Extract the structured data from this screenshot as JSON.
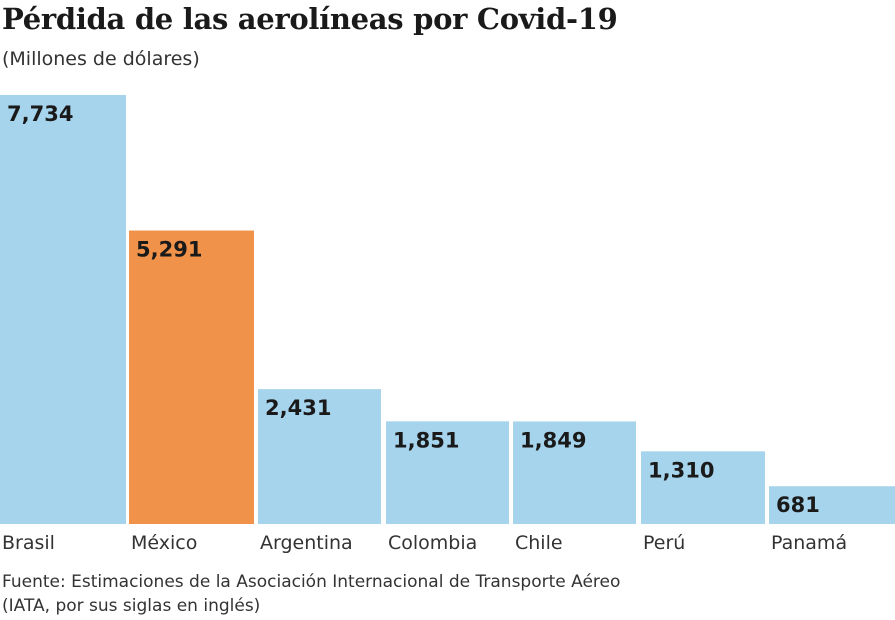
{
  "chart_data": {
    "type": "bar",
    "title": "Pérdida de las aerolíneas por Covid-19",
    "subtitle": "(Millones de dólares)",
    "categories": [
      "Brasil",
      "México",
      "Argentina",
      "Colombia",
      "Chile",
      "Perú",
      "Panamá"
    ],
    "values": [
      7734,
      5291,
      2431,
      1851,
      1849,
      1310,
      681
    ],
    "data_labels": [
      "7,734",
      "5,291",
      "2,431",
      "1,851",
      "1,849",
      "1,310",
      "681"
    ],
    "highlight": "México",
    "colors": {
      "default": "#a6d4ec",
      "highlight": "#f0924a"
    },
    "ylim": [
      0,
      7734
    ],
    "grid": false,
    "source": [
      "Fuente: Estimaciones de la Asociación Internacional de Transporte Aéreo",
      "(IATA, por sus siglas en inglés)"
    ]
  }
}
